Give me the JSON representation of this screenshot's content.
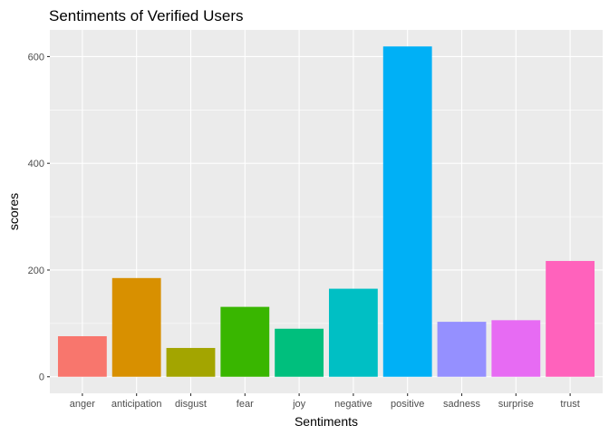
{
  "chart_data": {
    "type": "bar",
    "title": "Sentiments of Verified Users",
    "xlabel": "Sentiments",
    "ylabel": "scores",
    "categories": [
      "anger",
      "anticipation",
      "disgust",
      "fear",
      "joy",
      "negative",
      "positive",
      "sadness",
      "surprise",
      "trust"
    ],
    "values": [
      76,
      185,
      54,
      131,
      90,
      165,
      619,
      103,
      106,
      217
    ],
    "colors": [
      "#F8766D",
      "#D89000",
      "#A3A500",
      "#39B600",
      "#00BF7D",
      "#00BFC4",
      "#00B0F6",
      "#9590FF",
      "#E76BF3",
      "#FF62BC"
    ],
    "yticks": [
      0,
      200,
      400,
      600
    ],
    "ylim": [
      -31,
      650
    ],
    "grid": true,
    "legend": "none",
    "panel_background": "#EBEBEB",
    "grid_color": "#FFFFFF"
  }
}
